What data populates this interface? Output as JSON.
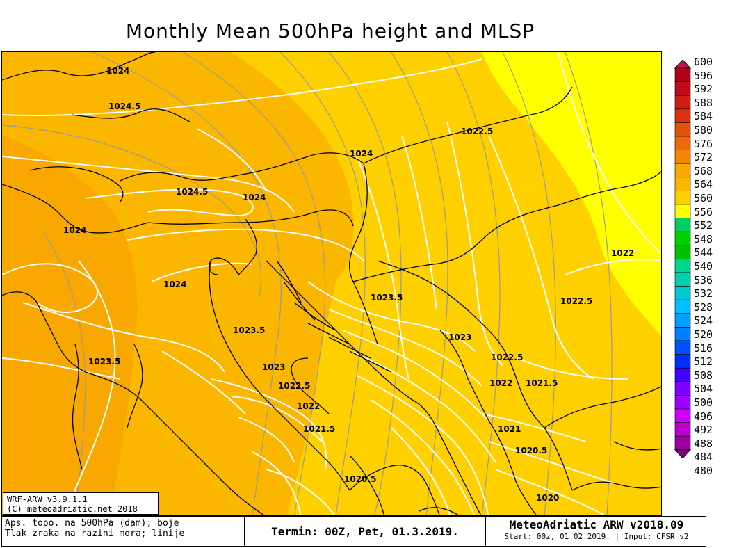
{
  "title": "Monthly Mean 500hPa height and MLSP",
  "map": {
    "region": "Adriatic / Central Europe / Balkans",
    "fill_colors": {
      "560": "#ffd000",
      "564": "#fbb600",
      "568": "#f8a800",
      "556": "#ffff00"
    },
    "isobar_labels": [
      {
        "text": "1024"
      },
      {
        "text": "1024.5"
      },
      {
        "text": "1022.5"
      },
      {
        "text": "1024"
      },
      {
        "text": "1024.5"
      },
      {
        "text": "1024"
      },
      {
        "text": "1024"
      },
      {
        "text": "1024"
      },
      {
        "text": "1022"
      },
      {
        "text": "1023.5"
      },
      {
        "text": "1022.5"
      },
      {
        "text": "1023.5"
      },
      {
        "text": "1023"
      },
      {
        "text": "1023.5"
      },
      {
        "text": "1022.5"
      },
      {
        "text": "1023"
      },
      {
        "text": "1022"
      },
      {
        "text": "1021.5"
      },
      {
        "text": "1022.5"
      },
      {
        "text": "1022"
      },
      {
        "text": "1021.5"
      },
      {
        "text": "1021"
      },
      {
        "text": "1020.5"
      },
      {
        "text": "1020.5"
      },
      {
        "text": "1020"
      }
    ]
  },
  "colorbar": {
    "levels": [
      "600",
      "596",
      "592",
      "588",
      "584",
      "580",
      "576",
      "572",
      "568",
      "564",
      "560",
      "556",
      "552",
      "548",
      "544",
      "540",
      "536",
      "532",
      "528",
      "524",
      "520",
      "516",
      "512",
      "508",
      "504",
      "500",
      "496",
      "492",
      "488",
      "484",
      "480"
    ],
    "colors": [
      "#c8104e",
      "#b0001a",
      "#c00a18",
      "#d01d14",
      "#dc3010",
      "#e4500c",
      "#ec6a08",
      "#f28806",
      "#f8a800",
      "#fbb600",
      "#ffd000",
      "#ffff00",
      "#00d060",
      "#00d000",
      "#00c000",
      "#00d490",
      "#00d0b0",
      "#00c8d0",
      "#00c0ff",
      "#00a0ff",
      "#0080ff",
      "#0050ff",
      "#0030ff",
      "#4000ff",
      "#8000ff",
      "#a000ff",
      "#d000ff",
      "#c000d0",
      "#a000a0",
      "#800080"
    ]
  },
  "legend": {
    "line1": "WRF-ARW v3.9.1.1",
    "line2": "(C) meteoadriatic.net 2018"
  },
  "footer": {
    "left_line1": "Aps. topo. na 500hPa (dam); boje",
    "left_line2": "Tlak zraka na razini mora; linije",
    "middle": "Termin: 00Z, Pet, 01.3.2019.",
    "right_line1": "MeteoAdriatic ARW v2018.09",
    "right_line2": "Start: 00z, 01.02.2019. | Input: CFSR v2"
  }
}
